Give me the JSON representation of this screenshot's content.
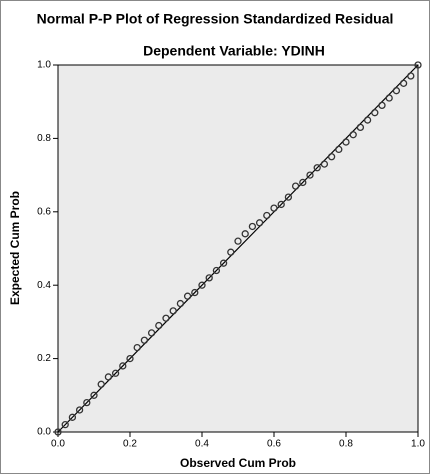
{
  "chart_data": {
    "type": "scatter",
    "title": "Normal P-P Plot of Regression Standardized Residual",
    "subtitle": "Dependent Variable: YDINH",
    "x_label": "Observed Cum Prob",
    "y_label": "Expected Cum Prob",
    "x": [
      0,
      0.02,
      0.04,
      0.06,
      0.08,
      0.1,
      0.12,
      0.14,
      0.16,
      0.18,
      0.2,
      0.22,
      0.24,
      0.26,
      0.28,
      0.3,
      0.32,
      0.34,
      0.36,
      0.38,
      0.4,
      0.42,
      0.44,
      0.46,
      0.48,
      0.5,
      0.52,
      0.54,
      0.56,
      0.58,
      0.6,
      0.62,
      0.64,
      0.66,
      0.68,
      0.7,
      0.72,
      0.74,
      0.76,
      0.78,
      0.8,
      0.82,
      0.84,
      0.86,
      0.88,
      0.9,
      0.92,
      0.94,
      0.96,
      0.98,
      1.0
    ],
    "values": [
      0,
      0.02,
      0.04,
      0.06,
      0.08,
      0.1,
      0.13,
      0.15,
      0.16,
      0.18,
      0.2,
      0.23,
      0.25,
      0.27,
      0.29,
      0.31,
      0.33,
      0.35,
      0.37,
      0.38,
      0.4,
      0.42,
      0.44,
      0.46,
      0.49,
      0.52,
      0.54,
      0.56,
      0.57,
      0.59,
      0.61,
      0.62,
      0.64,
      0.67,
      0.68,
      0.7,
      0.72,
      0.73,
      0.75,
      0.77,
      0.79,
      0.81,
      0.83,
      0.85,
      0.87,
      0.89,
      0.91,
      0.93,
      0.95,
      0.97,
      1.0
    ],
    "color": "#333333",
    "xlim": [
      0,
      1
    ],
    "ylim": [
      0,
      1
    ],
    "xticks": [
      {
        "value": 0,
        "label": "0.0"
      },
      0.2,
      0.4,
      0.6,
      0.8,
      {
        "value": 1,
        "label": "1.0"
      }
    ],
    "yticks": [
      {
        "value": 0,
        "label": "0.0"
      },
      0.2,
      0.4,
      0.6,
      0.8,
      {
        "value": 1,
        "label": "1.0"
      }
    ]
  }
}
